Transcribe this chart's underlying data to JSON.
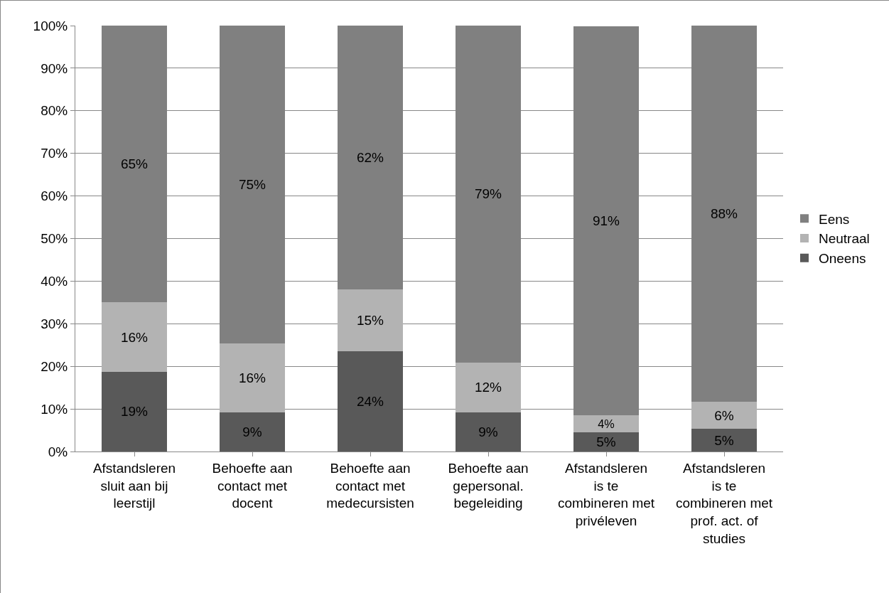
{
  "chart_data": {
    "type": "bar",
    "stacked": true,
    "categories": [
      "Afstandsleren sluit aan bij leerstijl",
      "Behoefte aan contact met docent",
      "Behoefte aan contact met medecursisten",
      "Behoefte aan gepersonal. begeleiding",
      "Afstandsleren is te combineren met privéleven",
      "Afstandsleren is te combineren met prof. act. of studies"
    ],
    "series": [
      {
        "name": "Oneens",
        "color": "#595959",
        "values": [
          18.7,
          9.2,
          23.5,
          9.2,
          4.5,
          5.3
        ],
        "value_labels": [
          "19%",
          "9%",
          "24%",
          "9%",
          "5%",
          "5%"
        ]
      },
      {
        "name": "Neutraal",
        "color": "#b3b3b3",
        "values": [
          16.3,
          16.1,
          14.6,
          11.7,
          4.0,
          6.4
        ],
        "value_labels": [
          "16%",
          "16%",
          "15%",
          "12%",
          "4%",
          "6%"
        ]
      },
      {
        "name": "Eens",
        "color": "#808080",
        "values": [
          65.0,
          74.7,
          61.9,
          79.1,
          91.4,
          88.3
        ],
        "value_labels": [
          "65%",
          "75%",
          "62%",
          "79%",
          "91%",
          "88%"
        ]
      }
    ],
    "ylim": [
      0,
      100
    ],
    "yticks": [
      {
        "value": 0,
        "label": "0%"
      },
      {
        "value": 10,
        "label": "10%"
      },
      {
        "value": 20,
        "label": "20%"
      },
      {
        "value": 30,
        "label": "30%"
      },
      {
        "value": 40,
        "label": "40%"
      },
      {
        "value": 50,
        "label": "50%"
      },
      {
        "value": 60,
        "label": "60%"
      },
      {
        "value": 70,
        "label": "70%"
      },
      {
        "value": 80,
        "label": "80%"
      },
      {
        "value": 90,
        "label": "90%"
      },
      {
        "value": 100,
        "label": "100%"
      }
    ],
    "grid": "y",
    "legend": "right"
  }
}
